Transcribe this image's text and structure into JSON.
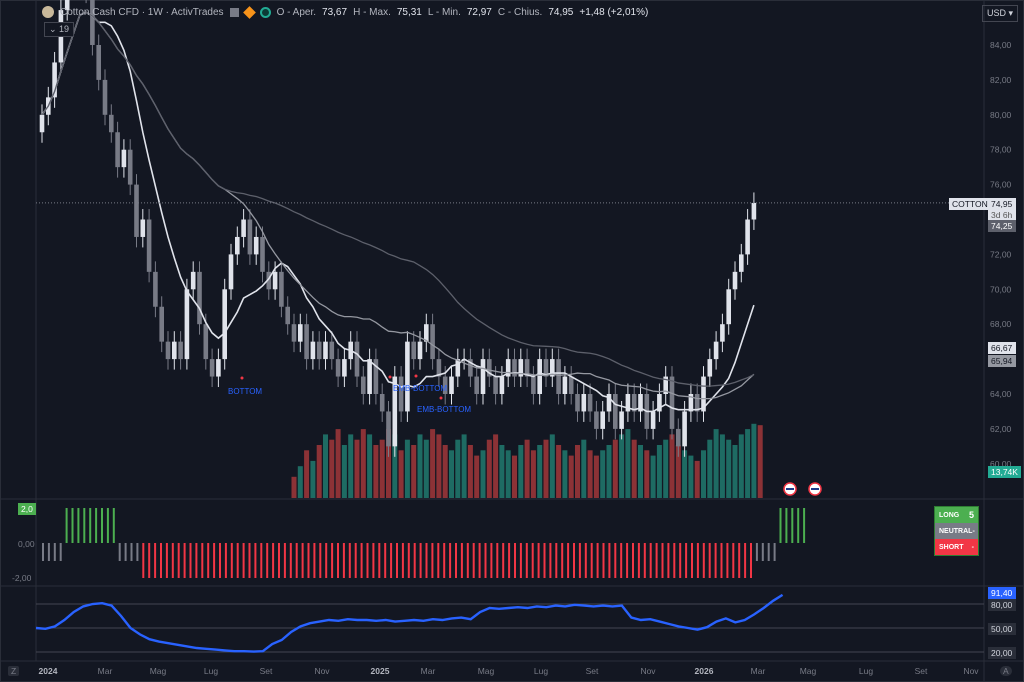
{
  "header": {
    "symbol": "Cotton Cash CFD · 1W · ActivTrades",
    "o_label": "O - Aper.",
    "o": "73,67",
    "h_label": "H - Max.",
    "h": "75,31",
    "l_label": "L - Min.",
    "l": "72,97",
    "c_label": "C - Chius.",
    "c": "74,95",
    "change": "+1,48 (+2,01%)",
    "indicator_count": "19",
    "currency": "USD"
  },
  "price_tags": {
    "symbol": "COTTON",
    "last": "74,95",
    "countdown": "3d 6h",
    "ma1": "74,25",
    "ma2": "66,67",
    "ma3": "65,94",
    "volume": "13,74K"
  },
  "osc_tags": {
    "top": "2,0",
    "zero": "0,00",
    "bottom": "-2,00"
  },
  "rsi_tags": {
    "value": "91,40",
    "l80": "80,00",
    "l50": "50,00",
    "l20": "20,00"
  },
  "signal_table": {
    "long": "LONG",
    "long_val": "5",
    "neutral": "NEUTRAL",
    "neutral_val": "-",
    "short": "SHORT",
    "short_val": "-"
  },
  "labels": {
    "bottom1": "BOTTOM",
    "ema1": "EMB-BOTTOM",
    "ema2": "EMB-BOTTOM"
  },
  "footer": {
    "left": "Z",
    "right": "A"
  },
  "colors": {
    "up": "#e0e3eb",
    "down": "#787b86",
    "vol_up": "#1e6b63",
    "vol_down": "#8c3236",
    "long": "#4caf50",
    "short": "#f23645",
    "neutral": "#787b86",
    "rsi": "#2962ff"
  },
  "chart_data": {
    "type": "candlestick",
    "timeframe": "1W",
    "x_ticks": [
      "2024",
      "Mar",
      "Mag",
      "Lug",
      "Set",
      "Nov",
      "2025",
      "Mar",
      "Mag",
      "Lug",
      "Set",
      "Nov",
      "2026",
      "Mar",
      "Mag",
      "Lug",
      "Set",
      "Nov"
    ],
    "y_ticks": [
      "84,00",
      "82,00",
      "80,00",
      "78,00",
      "76,00",
      "74,00",
      "72,00",
      "70,00",
      "68,00",
      "66,00",
      "64,00",
      "62,00",
      "60,00"
    ],
    "ylim": [
      59,
      85.5
    ],
    "closes": [
      80,
      81,
      83,
      86,
      88,
      90,
      92,
      87,
      84,
      82,
      80,
      79,
      77,
      78,
      76,
      73,
      74,
      71,
      69,
      67,
      66,
      67,
      66,
      70,
      71,
      68,
      66,
      65,
      66,
      70,
      72,
      73,
      74,
      72,
      73,
      71,
      70,
      71,
      69,
      68,
      67,
      68,
      66,
      67,
      66,
      67,
      66,
      65,
      66,
      67,
      65,
      64,
      66,
      64,
      63,
      61,
      65,
      63,
      67,
      66,
      67,
      68,
      66,
      65,
      64,
      65,
      66,
      66,
      65,
      64,
      66,
      65,
      64,
      65,
      66,
      65,
      66,
      65,
      64,
      66,
      65,
      66,
      64,
      65,
      64,
      63,
      64,
      63,
      62,
      63,
      64,
      62,
      63,
      64,
      63,
      64,
      62,
      63,
      64,
      65,
      62,
      61,
      63,
      64,
      63,
      65,
      66,
      67,
      68,
      70,
      71,
      72,
      74,
      74.95
    ],
    "volume_k": [
      0,
      0,
      0,
      0,
      0,
      0,
      0,
      0,
      0,
      0,
      0,
      0,
      0,
      0,
      0,
      0,
      0,
      0,
      0,
      0,
      0,
      0,
      0,
      0,
      0,
      0,
      0,
      0,
      0,
      0,
      0,
      0,
      0,
      0,
      0,
      0,
      0,
      0,
      0,
      0,
      4,
      6,
      9,
      7,
      10,
      12,
      11,
      13,
      10,
      12,
      11,
      13,
      12,
      10,
      11,
      13,
      12,
      9,
      11,
      10,
      12,
      11,
      13,
      12,
      10,
      9,
      11,
      12,
      10,
      8,
      9,
      11,
      12,
      10,
      9,
      8,
      10,
      11,
      9,
      10,
      11,
      12,
      10,
      9,
      8,
      10,
      11,
      9,
      8,
      9,
      10,
      11,
      12,
      13,
      11,
      10,
      9,
      8,
      10,
      11,
      12,
      10,
      9,
      8,
      7,
      9,
      11,
      13,
      12,
      11,
      10,
      12,
      13,
      14,
      13.74
    ],
    "signals": {
      "values": "-1 neutral, +2 long, -2 short",
      "sequence": "gray x4, green x9, gray x4, red x104, gray x4, green x5"
    },
    "rsi_ticks": [
      20,
      50,
      80
    ],
    "rsi_last": 91.4
  }
}
